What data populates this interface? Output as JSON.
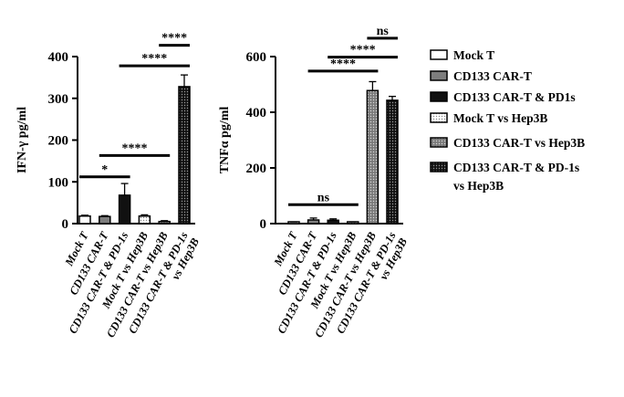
{
  "chart_data": [
    {
      "type": "bar",
      "ylabel": "IFN-γ pg/ml",
      "ylim": [
        0,
        400
      ],
      "yticks": [
        0,
        100,
        200,
        300,
        400
      ],
      "categories": [
        "Mock T",
        "CD133 CAR-T",
        "CD133 CAR-T & PD-1s",
        "Mock T vs Hep3B",
        "CD133 CAR-T vs Hep3B",
        "CD133 CAR-T & PD-1s vs Hep3B"
      ],
      "tick_labels": [
        [
          "Mock T"
        ],
        [
          "CD133 CAR-T"
        ],
        [
          "CD133 CAR-T & PD-1s"
        ],
        [
          "Mock T vs Hep3B"
        ],
        [
          "CD133 CAR-T vs Hep3B"
        ],
        [
          "CD133 CAR-T & PD-1s",
          "vs Hep3B"
        ]
      ],
      "values": [
        18,
        17,
        68,
        18,
        5,
        328
      ],
      "errors": [
        2,
        2,
        28,
        3,
        2,
        28
      ],
      "significance": [
        {
          "from": 0,
          "to": 2,
          "label": "*",
          "y": 112
        },
        {
          "from": 1,
          "to": 4,
          "label": "****",
          "y": 163
        },
        {
          "from": 2,
          "to": 5,
          "label": "****",
          "y": 378
        },
        {
          "from": 4,
          "to": 5,
          "label": "****",
          "y": 427
        }
      ]
    },
    {
      "type": "bar",
      "ylabel": "TNFα pg/ml",
      "ylim": [
        0,
        600
      ],
      "yticks": [
        0,
        200,
        400,
        600
      ],
      "categories": [
        "Mock T",
        "CD133 CAR-T",
        "CD133 CAR-T & PD-1s",
        "Mock T vs Hep3B",
        "CD133 CAR-T vs Hep3B",
        "CD133 CAR-T & PD-1s vs Hep3B"
      ],
      "tick_labels": [
        [
          "Mock T"
        ],
        [
          "CD133 CAR-T"
        ],
        [
          "CD133 CAR-T & PD-1s"
        ],
        [
          "Mock T vs Hep3B"
        ],
        [
          "CD133 CAR-T vs Hep3B"
        ],
        [
          "CD133 CAR-T & PD-1s",
          "vs Hep3B"
        ]
      ],
      "values": [
        3,
        13,
        12,
        3,
        478,
        443
      ],
      "errors": [
        3,
        7,
        5,
        3,
        32,
        14
      ],
      "significance": [
        {
          "from": 0,
          "to": 3,
          "label": "ns",
          "y": 68
        },
        {
          "from": 1,
          "to": 4,
          "label": "****",
          "y": 548
        },
        {
          "from": 2,
          "to": 5,
          "label": "****",
          "y": 598
        },
        {
          "from": 4,
          "to": 5,
          "label": "ns",
          "y": 666
        }
      ]
    }
  ],
  "legend": {
    "placement": "right",
    "items": [
      {
        "label": "Mock T",
        "style": "white"
      },
      {
        "label": "CD133 CAR-T",
        "style": "gray"
      },
      {
        "label": "CD133 CAR-T & PD1s",
        "style": "black"
      },
      {
        "label": "Mock T vs Hep3B",
        "style": "white-dots"
      },
      {
        "label": "CD133 CAR-T vs Hep3B",
        "style": "gray-dots"
      },
      {
        "label": "CD133 CAR-T & PD-1s",
        "label2": "vs Hep3B",
        "style": "black-dots"
      }
    ]
  },
  "colors": {
    "black": "#111111",
    "gray": "#808080",
    "white": "#ffffff"
  }
}
